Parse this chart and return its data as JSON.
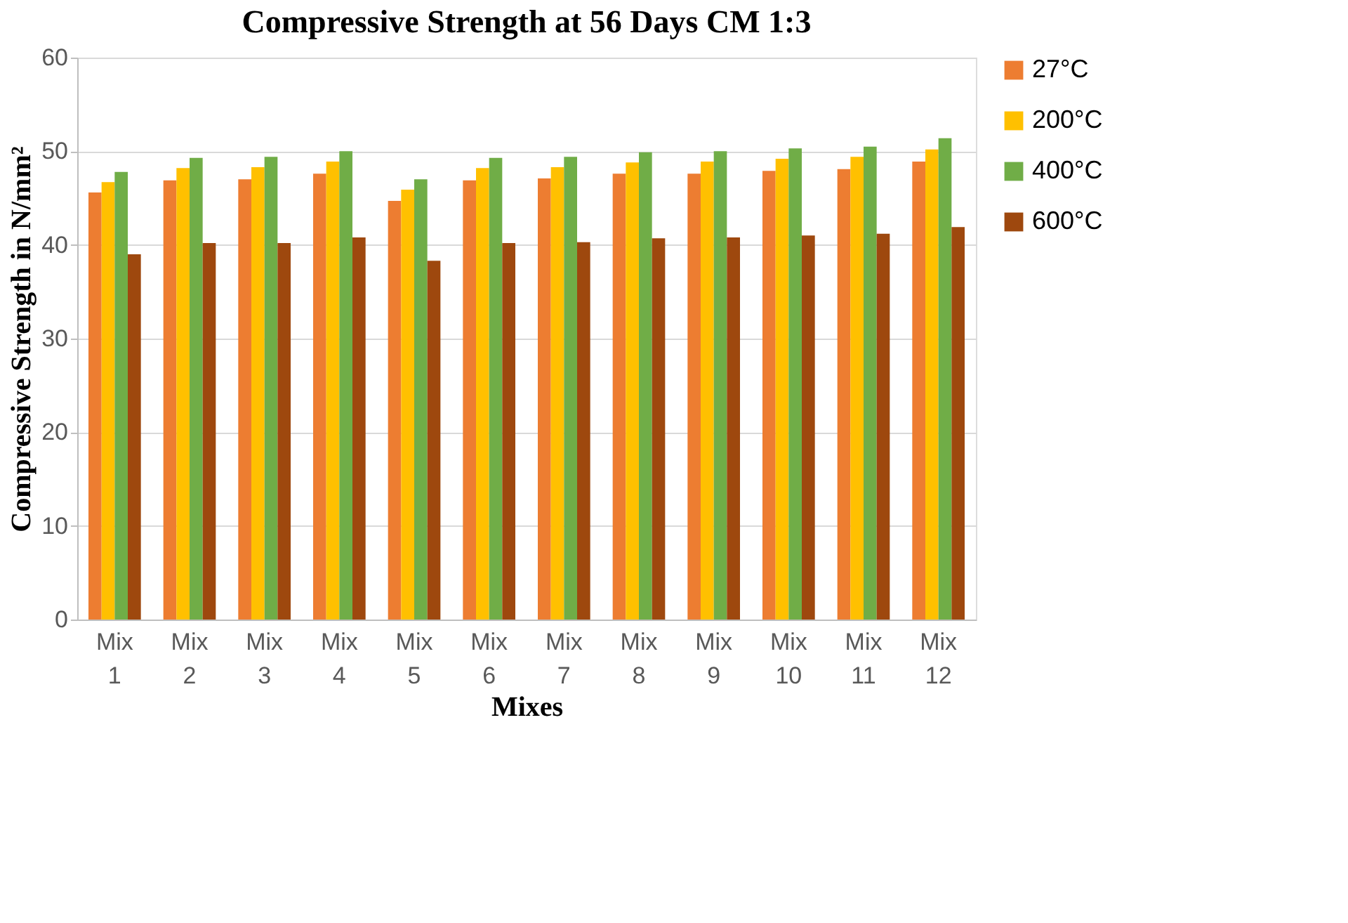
{
  "chart_data": {
    "type": "bar",
    "title": "Compressive Strength at 56 Days CM 1:3",
    "xlabel": "Mixes",
    "ylabel": "Compressive Strength in N/mm²",
    "categories": [
      "Mix 1",
      "Mix 2",
      "Mix 3",
      "Mix 4",
      "Mix 5",
      "Mix 6",
      "Mix 7",
      "Mix 8",
      "Mix 9",
      "Mix 10",
      "Mix 11",
      "Mix 12"
    ],
    "series": [
      {
        "name": "27°C",
        "color": "#ed7d31",
        "values": [
          45.6,
          46.9,
          47.0,
          47.6,
          44.7,
          46.9,
          47.1,
          47.6,
          47.6,
          47.9,
          48.1,
          48.9
        ]
      },
      {
        "name": "200°C",
        "color": "#ffc000",
        "values": [
          46.7,
          48.2,
          48.3,
          48.9,
          45.9,
          48.2,
          48.3,
          48.8,
          48.9,
          49.2,
          49.4,
          50.2
        ]
      },
      {
        "name": "400°C",
        "color": "#70ad47",
        "values": [
          47.8,
          49.3,
          49.4,
          50.0,
          47.0,
          49.3,
          49.4,
          49.9,
          50.0,
          50.3,
          50.5,
          51.4
        ]
      },
      {
        "name": "600°C",
        "color": "#9e480e",
        "values": [
          39.0,
          40.2,
          40.2,
          40.8,
          38.3,
          40.2,
          40.3,
          40.7,
          40.8,
          41.0,
          41.2,
          41.9
        ]
      }
    ],
    "ylim": [
      0,
      60
    ],
    "yticks": [
      0,
      10,
      20,
      30,
      40,
      50,
      60
    ],
    "grid": "y",
    "legend": "right"
  }
}
